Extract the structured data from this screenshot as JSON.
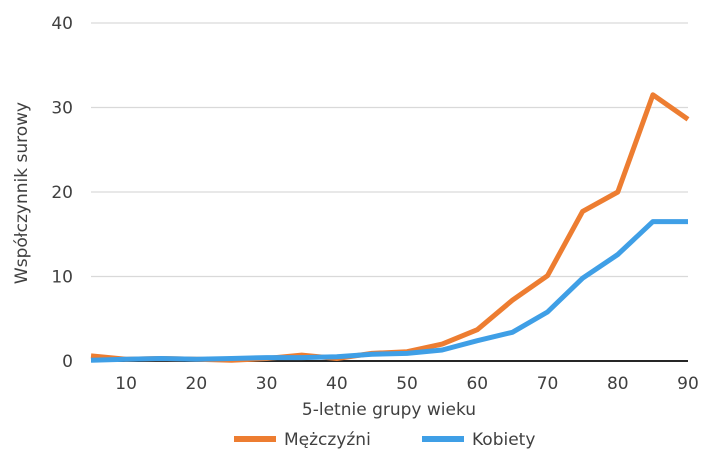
{
  "chart_data": {
    "type": "line",
    "title": "",
    "xlabel": "5-letnie grupy wieku",
    "ylabel": "Współczynnik surowy",
    "x": [
      5,
      10,
      15,
      20,
      25,
      30,
      35,
      40,
      45,
      50,
      55,
      60,
      65,
      70,
      75,
      80,
      85,
      90
    ],
    "xticks": [
      "10",
      "20",
      "30",
      "40",
      "50",
      "60",
      "70",
      "80",
      "90"
    ],
    "xtick_values": [
      10,
      20,
      30,
      40,
      50,
      60,
      70,
      80,
      90
    ],
    "xlim": [
      5,
      90
    ],
    "yticks": [
      "0",
      "10",
      "20",
      "30",
      "40"
    ],
    "ytick_values": [
      0,
      10,
      20,
      30,
      40
    ],
    "ylim": [
      0,
      40
    ],
    "grid": "horizontal",
    "legend_position": "bottom",
    "series": [
      {
        "name": "Mężczyźni",
        "color": "#ED7D31",
        "values": [
          0.6,
          0.2,
          0.3,
          0.2,
          0.1,
          0.3,
          0.7,
          0.3,
          0.9,
          1.1,
          2.0,
          3.7,
          7.2,
          10.1,
          17.7,
          20.0,
          31.5,
          28.6
        ]
      },
      {
        "name": "Kobiety",
        "color": "#3F9FE6",
        "values": [
          0.1,
          0.2,
          0.3,
          0.2,
          0.3,
          0.4,
          0.4,
          0.5,
          0.8,
          0.9,
          1.3,
          2.4,
          3.4,
          5.8,
          9.8,
          12.6,
          16.5,
          16.5
        ]
      }
    ]
  }
}
